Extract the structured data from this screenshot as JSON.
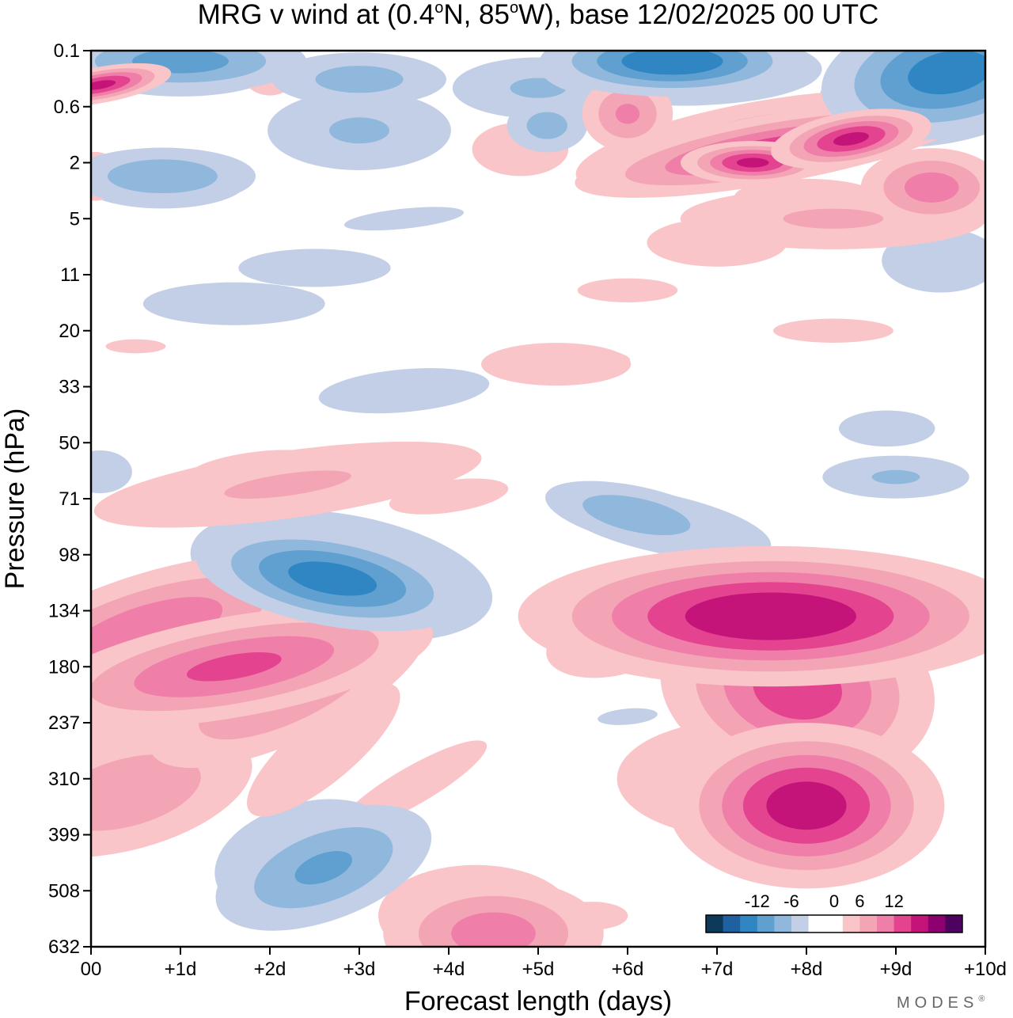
{
  "title": {
    "prefix": "MRG v wind at (0.4",
    "deg1": "o",
    "mid": "N, 85",
    "deg2": "o",
    "suffix": "W),  base 12/02/2025  00 UTC"
  },
  "brand": "MODES",
  "brand_mark": "®",
  "chart_data": {
    "type": "contour",
    "title": "MRG v wind at (0.4°N, 85°W),  base 12/02/2025  00 UTC",
    "xlabel": "Forecast length (days)",
    "ylabel": "Pressure (hPa)",
    "x_ticks": [
      "00",
      "+1d",
      "+2d",
      "+3d",
      "+4d",
      "+5d",
      "+6d",
      "+7d",
      "+8d",
      "+9d",
      "+10d"
    ],
    "xlim": [
      0,
      10
    ],
    "y_ticks": [
      "0.1",
      "0.6",
      "2",
      "5",
      "11",
      "20",
      "33",
      "50",
      "71",
      "98",
      "134",
      "180",
      "237",
      "310",
      "399",
      "508",
      "632"
    ],
    "y_scale": "pressure levels, evenly spaced, top to bottom",
    "colorbar": {
      "ticks": [
        "-12",
        "-6",
        "0",
        "6",
        "12"
      ],
      "levels": [
        -15,
        -12,
        -9,
        -6,
        -3,
        0,
        3,
        6,
        9,
        12,
        15
      ],
      "colors": [
        "#0d3a5a",
        "#1e60a0",
        "#2f86c3",
        "#5fa0d0",
        "#8fb8dc",
        "#c3cfe6",
        "#ffffff",
        "#ffffff",
        "#f9c5c9",
        "#f4a5b5",
        "#ef7fa8",
        "#e3438f",
        "#c4147a",
        "#8c006f",
        "#4e0260"
      ]
    },
    "features": [
      {
        "label": "positive maximum",
        "x": 7.5,
        "y": "134",
        "value": 17
      },
      {
        "label": "positive maximum",
        "x": 8.0,
        "y": "350",
        "value": 16
      },
      {
        "label": "positive band",
        "x": 2.0,
        "y": "180",
        "value": 12
      },
      {
        "label": "negative minimum",
        "x": 2.7,
        "y": "110",
        "value": -13
      },
      {
        "label": "negative minimum",
        "x": 2.5,
        "y": "460",
        "value": -9
      },
      {
        "label": "positive maximum",
        "x": 4.6,
        "y": "600",
        "value": 10
      },
      {
        "label": "positive maximum",
        "x": 7.5,
        "y": "2",
        "value": 15
      },
      {
        "label": "negative minimum",
        "x": 6.5,
        "y": "0.1",
        "value": -14
      },
      {
        "label": "negative minimum",
        "x": 9.7,
        "y": "0.3",
        "value": -13
      }
    ]
  }
}
